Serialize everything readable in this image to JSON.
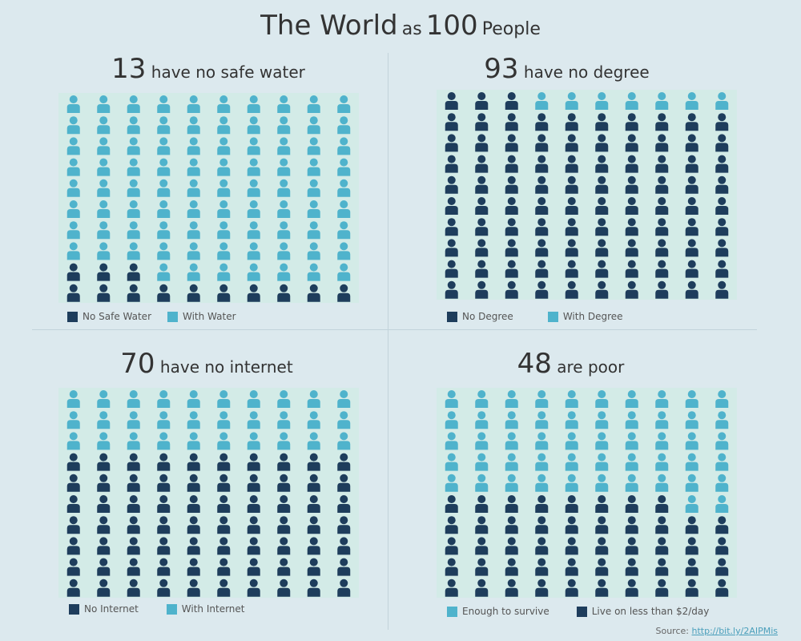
{
  "header": {
    "part1": "The World",
    "part2": "as",
    "part3": "100",
    "part4": "People"
  },
  "colors": {
    "dark": "#1e3d5c",
    "light": "#4fb3cc"
  },
  "chart_data": [
    {
      "type": "pictogram",
      "title_number": "13",
      "title_text": "have no safe water",
      "total": 100,
      "rows": 10,
      "cols": 10,
      "categories": [
        {
          "name": "No Safe Water",
          "value": 13,
          "color": "#1e3d5c"
        },
        {
          "name": "With Water",
          "value": 87,
          "color": "#4fb3cc"
        }
      ],
      "fill_from": "bottom",
      "legend": [
        "No Safe Water",
        "With Water"
      ]
    },
    {
      "type": "pictogram",
      "title_number": "93",
      "title_text": "have no degree",
      "total": 100,
      "rows": 10,
      "cols": 10,
      "categories": [
        {
          "name": "No Degree",
          "value": 93,
          "color": "#1e3d5c"
        },
        {
          "name": "With Degree",
          "value": 7,
          "color": "#4fb3cc"
        }
      ],
      "fill_from": "bottom",
      "legend": [
        "No Degree",
        "With Degree"
      ]
    },
    {
      "type": "pictogram",
      "title_number": "70",
      "title_text": "have no internet",
      "total": 100,
      "rows": 10,
      "cols": 10,
      "categories": [
        {
          "name": "No Internet",
          "value": 70,
          "color": "#1e3d5c"
        },
        {
          "name": "With Internet",
          "value": 30,
          "color": "#4fb3cc"
        }
      ],
      "fill_from": "bottom",
      "legend": [
        "No Internet",
        "With Internet"
      ]
    },
    {
      "type": "pictogram",
      "title_number": "48",
      "title_text": "are poor",
      "total": 100,
      "rows": 10,
      "cols": 10,
      "categories": [
        {
          "name": "Live on less than $2/day",
          "value": 48,
          "color": "#1e3d5c"
        },
        {
          "name": "Enough to survive",
          "value": 52,
          "color": "#4fb3cc"
        }
      ],
      "fill_from": "bottom",
      "legend": [
        "Enough to survive",
        "Live on less than $2/day"
      ]
    }
  ],
  "source": {
    "label": "Source:",
    "link": "http://bit.ly/2AIPMis"
  }
}
